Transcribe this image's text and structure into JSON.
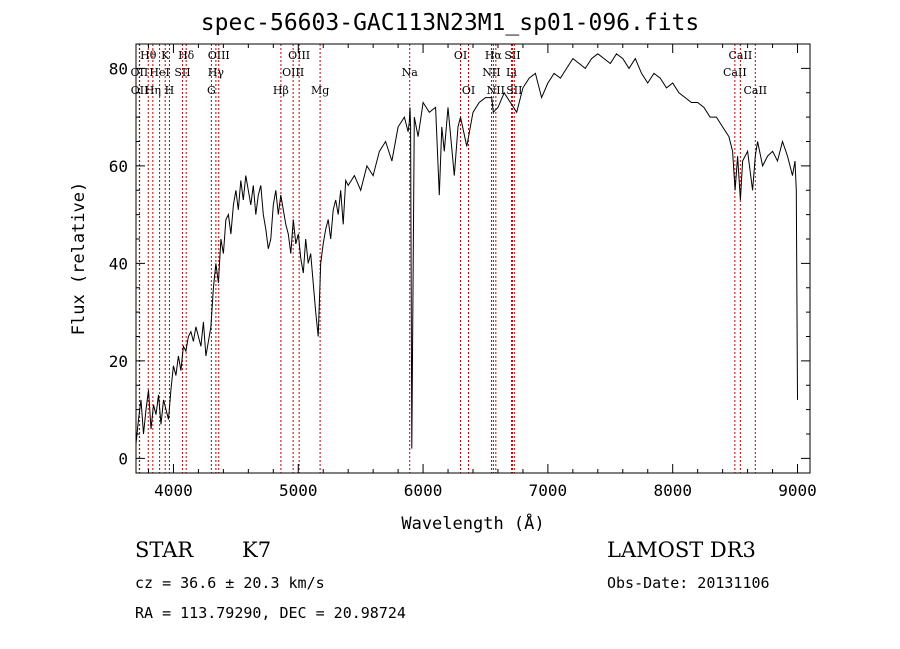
{
  "header": {
    "title": "spec-56603-GAC113N23M1_sp01-096.fits"
  },
  "info": {
    "class": "STAR",
    "subclass": "K7",
    "survey": "LAMOST DR3",
    "cz": "cz = 36.6 ± 20.3 km/s",
    "obs_date": "Obs-Date: 20131106",
    "coords": "RA = 113.79290, DEC =  20.98724"
  },
  "chart_data": {
    "type": "line",
    "title": "spec-56603-GAC113N23M1_sp01-096.fits",
    "xlabel": "Wavelength (Å)",
    "ylabel": "Flux (relative)",
    "xlim": [
      3700,
      9100
    ],
    "ylim": [
      -3,
      85
    ],
    "xticks": [
      4000,
      5000,
      6000,
      7000,
      8000,
      9000
    ],
    "yticks": [
      0,
      20,
      40,
      60,
      80
    ],
    "color": "#000000",
    "line_color": "#c00000",
    "series": [
      {
        "name": "flux",
        "x": [
          3700,
          3720,
          3740,
          3760,
          3780,
          3800,
          3820,
          3840,
          3860,
          3880,
          3900,
          3920,
          3940,
          3960,
          3980,
          4000,
          4020,
          4040,
          4060,
          4080,
          4100,
          4120,
          4140,
          4160,
          4180,
          4200,
          4220,
          4240,
          4260,
          4280,
          4300,
          4320,
          4340,
          4360,
          4380,
          4400,
          4420,
          4440,
          4460,
          4480,
          4500,
          4520,
          4540,
          4560,
          4580,
          4600,
          4620,
          4640,
          4660,
          4680,
          4700,
          4720,
          4740,
          4760,
          4780,
          4800,
          4820,
          4840,
          4860,
          4880,
          4900,
          4920,
          4940,
          4960,
          4980,
          5000,
          5020,
          5040,
          5060,
          5080,
          5100,
          5120,
          5140,
          5160,
          5180,
          5200,
          5220,
          5240,
          5260,
          5280,
          5300,
          5320,
          5340,
          5360,
          5380,
          5400,
          5450,
          5500,
          5550,
          5600,
          5650,
          5700,
          5750,
          5800,
          5850,
          5880,
          5890,
          5895,
          5900,
          5910,
          5930,
          5960,
          6000,
          6050,
          6100,
          6130,
          6150,
          6170,
          6200,
          6250,
          6280,
          6300,
          6350,
          6400,
          6450,
          6500,
          6550,
          6563,
          6600,
          6650,
          6700,
          6750,
          6800,
          6850,
          6900,
          6950,
          7000,
          7050,
          7100,
          7150,
          7200,
          7250,
          7300,
          7350,
          7400,
          7450,
          7500,
          7550,
          7600,
          7650,
          7700,
          7750,
          7800,
          7850,
          7900,
          7950,
          8000,
          8050,
          8100,
          8150,
          8200,
          8250,
          8300,
          8350,
          8400,
          8450,
          8480,
          8500,
          8520,
          8542,
          8560,
          8600,
          8640,
          8662,
          8680,
          8720,
          8760,
          8800,
          8840,
          8880,
          8920,
          8960,
          8980,
          8990,
          9000
        ],
        "y": [
          3,
          8,
          12,
          5,
          10,
          14,
          6,
          11,
          9,
          13,
          7,
          12,
          10,
          8,
          14,
          19,
          17,
          21,
          18,
          23,
          22,
          25,
          26,
          24,
          27,
          25,
          23,
          28,
          21,
          24,
          27,
          35,
          40,
          36,
          45,
          42,
          49,
          50,
          46,
          52,
          55,
          51,
          57,
          53,
          58,
          55,
          52,
          56,
          50,
          54,
          56,
          50,
          47,
          43,
          45,
          52,
          55,
          50,
          54,
          51,
          48,
          46,
          42,
          49,
          44,
          46,
          41,
          38,
          45,
          40,
          42,
          36,
          30,
          25,
          40,
          44,
          47,
          49,
          45,
          51,
          53,
          50,
          55,
          48,
          57,
          56,
          58,
          55,
          60,
          58,
          63,
          65,
          61,
          68,
          70,
          67,
          69,
          72,
          68,
          2,
          70,
          66,
          73,
          71,
          72,
          54,
          68,
          63,
          72,
          58,
          68,
          70,
          64,
          71,
          73,
          74,
          74,
          71,
          72,
          75,
          73,
          71,
          76,
          78,
          79,
          74,
          77,
          79,
          78,
          80,
          82,
          81,
          80,
          82,
          83,
          82,
          81,
          83,
          82,
          80,
          82,
          79,
          77,
          79,
          78,
          76,
          77,
          75,
          74,
          73,
          73,
          72,
          70,
          70,
          68,
          66,
          63,
          55,
          62,
          53,
          61,
          63,
          55,
          62,
          65,
          60,
          62,
          63,
          61,
          65,
          62,
          58,
          61,
          55,
          12
        ]
      }
    ],
    "lines": [
      {
        "name": "Hθ",
        "wl": 3798,
        "tier": 0
      },
      {
        "name": "OII",
        "wl": 3727,
        "tier": 1
      },
      {
        "name": "OII",
        "wl": 3729,
        "tier": 2
      },
      {
        "name": "Hη",
        "wl": 3835,
        "tier": 2
      },
      {
        "name": "HeI",
        "wl": 3889,
        "tier": 1
      },
      {
        "name": "K",
        "wl": 3934,
        "tier": 0
      },
      {
        "name": "H",
        "wl": 3968,
        "tier": 2
      },
      {
        "name": "SII",
        "wl": 4072,
        "tier": 1
      },
      {
        "name": "Hδ",
        "wl": 4102,
        "tier": 0
      },
      {
        "name": "G",
        "wl": 4304,
        "tier": 2
      },
      {
        "name": "Hγ",
        "wl": 4340,
        "tier": 1
      },
      {
        "name": "OIII",
        "wl": 4363,
        "tier": 0
      },
      {
        "name": "Hβ",
        "wl": 4861,
        "tier": 2
      },
      {
        "name": "OIII",
        "wl": 4959,
        "tier": 1
      },
      {
        "name": "OIII",
        "wl": 5007,
        "tier": 0
      },
      {
        "name": "Mg",
        "wl": 5175,
        "tier": 2
      },
      {
        "name": "Na",
        "wl": 5893,
        "tier": 1
      },
      {
        "name": "OI",
        "wl": 6300,
        "tier": 0
      },
      {
        "name": "OI",
        "wl": 6364,
        "tier": 2
      },
      {
        "name": "NII",
        "wl": 6548,
        "tier": 1
      },
      {
        "name": "Hα",
        "wl": 6563,
        "tier": 0
      },
      {
        "name": "NII",
        "wl": 6583,
        "tier": 2
      },
      {
        "name": "Li",
        "wl": 6708,
        "tier": 1
      },
      {
        "name": "SII",
        "wl": 6716,
        "tier": 0
      },
      {
        "name": "SII",
        "wl": 6731,
        "tier": 2
      },
      {
        "name": "CaII",
        "wl": 8498,
        "tier": 1
      },
      {
        "name": "CaII",
        "wl": 8542,
        "tier": 0
      },
      {
        "name": "CaII",
        "wl": 8662,
        "tier": 2
      }
    ]
  }
}
